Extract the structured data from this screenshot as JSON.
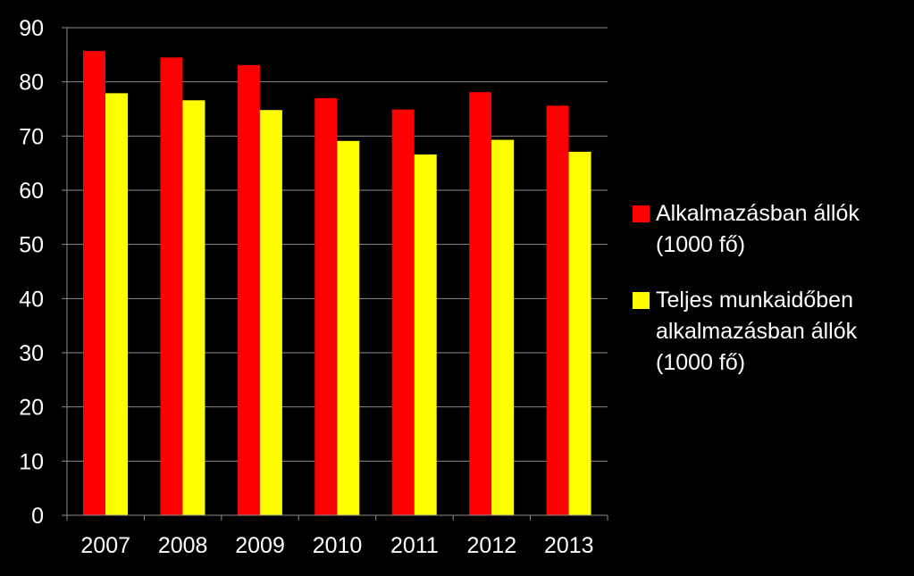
{
  "chart_data": {
    "type": "bar",
    "categories": [
      "2007",
      "2008",
      "2009",
      "2010",
      "2011",
      "2012",
      "2013"
    ],
    "series": [
      {
        "name": "Alkalmazásban állók\n(1000 fő)",
        "color": "#ff0000",
        "values": [
          85.7,
          84.5,
          83.1,
          77.0,
          74.9,
          78.1,
          75.6
        ]
      },
      {
        "name": "Teljes munkaidőben\nalkalmazásban állók\n(1000 fő)",
        "color": "#ffff00",
        "values": [
          77.9,
          76.6,
          74.8,
          69.1,
          66.6,
          69.3,
          67.1
        ]
      }
    ],
    "y_ticks": [
      "0",
      "10",
      "20",
      "30",
      "40",
      "50",
      "60",
      "70",
      "80",
      "90"
    ],
    "ylim": [
      0,
      90
    ],
    "grid": true,
    "legend_position": "right",
    "title": "",
    "xlabel": "",
    "ylabel": ""
  }
}
